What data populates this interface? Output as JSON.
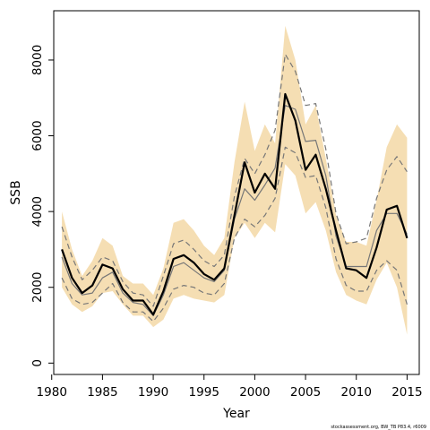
{
  "chart_data": {
    "type": "line",
    "xlabel": "Year",
    "ylabel": "SSB",
    "xlim": [
      1980.2,
      2016.2
    ],
    "ylim": [
      -300,
      9300
    ],
    "xticks": [
      1980,
      1985,
      1990,
      1995,
      2000,
      2005,
      2010,
      2015
    ],
    "yticks": [
      0,
      2000,
      4000,
      6000,
      8000
    ],
    "grid": false,
    "legend": "none",
    "x": [
      1981,
      1982,
      1983,
      1984,
      1985,
      1986,
      1987,
      1988,
      1989,
      1990,
      1991,
      1992,
      1993,
      1994,
      1995,
      1996,
      1997,
      1998,
      1999,
      2000,
      2001,
      2002,
      2003,
      2004,
      2005,
      2006,
      2007,
      2008,
      2009,
      2010,
      2011,
      2012,
      2013,
      2014,
      2015
    ],
    "band": {
      "color": "#f5deb3",
      "upper": [
        4000,
        3000,
        2300,
        2700,
        3300,
        3100,
        2300,
        2100,
        2100,
        1800,
        2500,
        3700,
        3800,
        3500,
        3100,
        2850,
        3300,
        5300,
        6900,
        5600,
        6300,
        5800,
        8900,
        8000,
        6300,
        6800,
        5400,
        3900,
        3200,
        3200,
        3100,
        4300,
        5700,
        6300,
        5950
      ],
      "lower": [
        2000,
        1550,
        1350,
        1500,
        1850,
        1900,
        1550,
        1250,
        1250,
        950,
        1150,
        1700,
        1800,
        1700,
        1650,
        1600,
        1800,
        3300,
        3700,
        3300,
        3700,
        3450,
        5250,
        4950,
        3950,
        4250,
        3500,
        2400,
        1800,
        1650,
        1550,
        2200,
        2650,
        2000,
        750
      ]
    },
    "series": [
      {
        "role": "estimate",
        "color": "#000000",
        "style": "solid",
        "width": 2.2,
        "values": [
          3000,
          2250,
          1850,
          2050,
          2600,
          2500,
          1950,
          1650,
          1650,
          1280,
          1900,
          2750,
          2850,
          2650,
          2350,
          2200,
          2500,
          3900,
          5300,
          4500,
          5000,
          4600,
          7100,
          6400,
          5100,
          5500,
          4600,
          3500,
          2500,
          2450,
          2250,
          3050,
          4050,
          4150,
          3300
        ]
      },
      {
        "role": "median",
        "color": "#777777",
        "style": "solid",
        "width": 1.2,
        "values": [
          2800,
          2100,
          1800,
          1850,
          2250,
          2400,
          1850,
          1600,
          1550,
          1250,
          1800,
          2550,
          2650,
          2450,
          2250,
          2150,
          2450,
          3800,
          4600,
          4300,
          4700,
          5150,
          6800,
          6700,
          5850,
          5880,
          4950,
          3350,
          2550,
          2550,
          2550,
          3500,
          3950,
          3950,
          3400
        ]
      },
      {
        "role": "upper-ci",
        "color": "#777777",
        "style": "dashed",
        "width": 1.2,
        "values": [
          3600,
          2800,
          2200,
          2450,
          2800,
          2700,
          2150,
          1850,
          1800,
          1500,
          2300,
          3150,
          3250,
          3000,
          2700,
          2550,
          2850,
          4400,
          5400,
          5000,
          5500,
          6150,
          8150,
          7700,
          6800,
          6850,
          5650,
          3950,
          3150,
          3200,
          3300,
          4350,
          5100,
          5450,
          5050
        ]
      },
      {
        "role": "lower-ci",
        "color": "#777777",
        "style": "dashed",
        "width": 1.2,
        "values": [
          2250,
          1700,
          1550,
          1600,
          1850,
          2100,
          1600,
          1350,
          1350,
          1100,
          1450,
          1950,
          2050,
          2000,
          1850,
          1800,
          2100,
          3300,
          3800,
          3600,
          3900,
          4350,
          5700,
          5550,
          4900,
          4950,
          4100,
          2750,
          2050,
          1900,
          1900,
          2450,
          2700,
          2450,
          1550
        ]
      }
    ],
    "credit": "stockassessment.org, BW_TB P83.4, r6009"
  }
}
